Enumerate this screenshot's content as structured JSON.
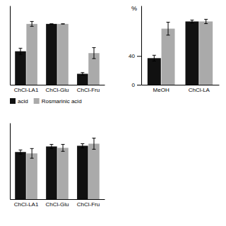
{
  "chart_data": [
    {
      "type": "bar",
      "categories": [
        "ChCl-LA1",
        "ChCl-Glu",
        "ChCl-Fru"
      ],
      "series": [
        {
          "name": "acid",
          "color": "#111111",
          "values": [
            55,
            100,
            18
          ],
          "errors": [
            5,
            0,
            2
          ]
        },
        {
          "name": "Rosmarinic acid",
          "color": "#aaaaaa",
          "values": [
            100,
            100,
            52
          ],
          "errors": [
            4,
            0,
            9
          ]
        }
      ],
      "ylim": [
        0,
        130
      ],
      "tick_labels": "x",
      "legend": "bottom"
    },
    {
      "type": "bar",
      "categories": [
        "MeOH",
        "ChCl-LA"
      ],
      "series": [
        {
          "color": "#111111",
          "values": [
            37,
            88
          ],
          "errors": [
            4,
            2
          ]
        },
        {
          "color": "#aaaaaa",
          "values": [
            78,
            88
          ],
          "errors": [
            9,
            3
          ]
        }
      ],
      "ylim": [
        0,
        110
      ],
      "yticks": [
        0,
        40
      ],
      "y_label": "%"
    },
    {
      "type": "bar",
      "categories": [
        "ChCl-LA1",
        "ChCl-Glu",
        "ChCl-Fru"
      ],
      "series": [
        {
          "color": "#111111",
          "values": [
            68,
            76,
            77
          ],
          "errors": [
            3,
            3,
            3
          ]
        },
        {
          "color": "#aaaaaa",
          "values": [
            66,
            74,
            80
          ],
          "errors": [
            7,
            5,
            8
          ]
        }
      ],
      "ylim": [
        0,
        110
      ],
      "tick_labels": "x"
    }
  ]
}
